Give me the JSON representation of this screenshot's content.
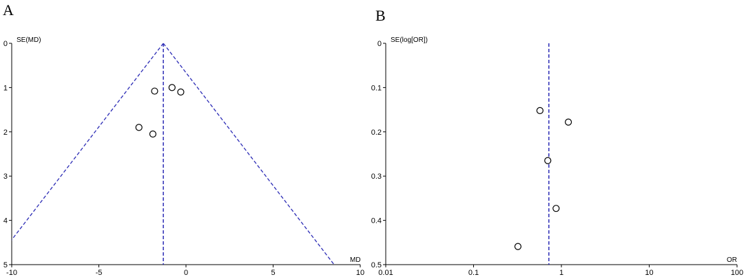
{
  "chart_data": [
    {
      "type": "scatter",
      "panel_label": "A",
      "xlabel": "MD",
      "ylabel": "SE(MD)",
      "xscale": "linear",
      "yreversed": true,
      "xlim": [
        -10,
        10
      ],
      "ylim": [
        0,
        5
      ],
      "xticks": [
        "-10",
        "-5",
        "0",
        "5",
        "10"
      ],
      "yticks": [
        "0",
        "1",
        "2",
        "3",
        "4",
        "5"
      ],
      "pooled_estimate": -1.3,
      "funnel": true,
      "points": [
        {
          "x": -1.8,
          "y": 1.08
        },
        {
          "x": -0.8,
          "y": 1.0
        },
        {
          "x": -0.3,
          "y": 1.1
        },
        {
          "x": -2.7,
          "y": 1.9
        },
        {
          "x": -1.9,
          "y": 2.05
        }
      ],
      "grid": false,
      "line_color": "#2b2bb5"
    },
    {
      "type": "scatter",
      "panel_label": "B",
      "xlabel": "OR",
      "ylabel": "SE(log[OR])",
      "xscale": "log",
      "yreversed": true,
      "xlim": [
        0.01,
        100
      ],
      "ylim": [
        0,
        0.5
      ],
      "xticks": [
        "0.01",
        "0.1",
        "1",
        "10",
        "100"
      ],
      "yticks": [
        "0",
        "0.1",
        "0.2",
        "0.3",
        "0.4",
        "0.5"
      ],
      "pooled_estimate": 0.72,
      "funnel": false,
      "points": [
        {
          "x": 0.57,
          "y": 0.152
        },
        {
          "x": 1.2,
          "y": 0.178
        },
        {
          "x": 0.7,
          "y": 0.265
        },
        {
          "x": 0.87,
          "y": 0.373
        },
        {
          "x": 0.32,
          "y": 0.459
        }
      ],
      "grid": false,
      "line_color": "#2b2bb5"
    }
  ]
}
